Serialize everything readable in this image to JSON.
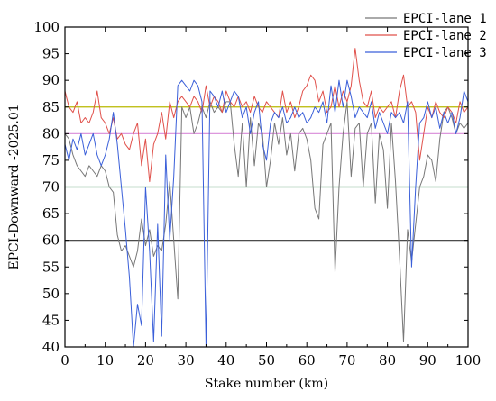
{
  "chart_data": {
    "type": "line",
    "xlabel": "Stake number (km)",
    "ylabel": "EPCI-Downward -2025.01",
    "xlim": [
      0,
      100
    ],
    "ylim": [
      40,
      100
    ],
    "x_ticks": [
      "0",
      "10",
      "20",
      "30",
      "40",
      "50",
      "60",
      "70",
      "80",
      "90",
      "100"
    ],
    "y_ticks": [
      "40",
      "45",
      "50",
      "55",
      "60",
      "65",
      "70",
      "75",
      "80",
      "85",
      "90",
      "95",
      "100"
    ],
    "grid": false,
    "legend_position": "top-right",
    "reference_lines": [
      {
        "y": 85,
        "color": "#b8b800"
      },
      {
        "y": 80,
        "color": "#d88ad8"
      },
      {
        "y": 70,
        "color": "#1f7a3a"
      },
      {
        "y": 60,
        "color": "#333333"
      }
    ],
    "series": [
      {
        "name": "EPCI-lane 1",
        "color": "#777777",
        "points": [
          [
            0,
            80
          ],
          [
            1,
            79
          ],
          [
            2,
            76
          ],
          [
            3,
            74
          ],
          [
            4,
            73
          ],
          [
            5,
            72
          ],
          [
            6,
            74
          ],
          [
            7,
            73
          ],
          [
            8,
            72
          ],
          [
            9,
            74
          ],
          [
            10,
            73
          ],
          [
            11,
            70
          ],
          [
            12,
            69
          ],
          [
            13,
            61
          ],
          [
            14,
            58
          ],
          [
            15,
            59
          ],
          [
            16,
            57
          ],
          [
            17,
            55
          ],
          [
            18,
            58
          ],
          [
            19,
            64
          ],
          [
            20,
            59
          ],
          [
            21,
            62
          ],
          [
            22,
            57
          ],
          [
            23,
            59
          ],
          [
            24,
            58
          ],
          [
            25,
            63
          ],
          [
            26,
            71
          ],
          [
            27,
            60
          ],
          [
            28,
            49
          ],
          [
            29,
            85
          ],
          [
            30,
            83
          ],
          [
            31,
            85
          ],
          [
            32,
            80
          ],
          [
            33,
            82
          ],
          [
            34,
            85
          ],
          [
            35,
            83
          ],
          [
            36,
            86
          ],
          [
            37,
            84
          ],
          [
            38,
            85
          ],
          [
            39,
            84
          ],
          [
            40,
            86
          ],
          [
            41,
            86
          ],
          [
            42,
            78
          ],
          [
            43,
            72
          ],
          [
            44,
            82
          ],
          [
            45,
            70
          ],
          [
            46,
            83
          ],
          [
            47,
            74
          ],
          [
            48,
            82
          ],
          [
            49,
            80
          ],
          [
            50,
            70
          ],
          [
            51,
            75
          ],
          [
            52,
            82
          ],
          [
            53,
            78
          ],
          [
            54,
            83
          ],
          [
            55,
            76
          ],
          [
            56,
            80
          ],
          [
            57,
            73
          ],
          [
            58,
            80
          ],
          [
            59,
            81
          ],
          [
            60,
            79
          ],
          [
            61,
            75
          ],
          [
            62,
            66
          ],
          [
            63,
            64
          ],
          [
            64,
            78
          ],
          [
            65,
            80
          ],
          [
            66,
            82
          ],
          [
            67,
            54
          ],
          [
            68,
            70
          ],
          [
            69,
            80
          ],
          [
            70,
            86
          ],
          [
            71,
            72
          ],
          [
            72,
            81
          ],
          [
            73,
            82
          ],
          [
            74,
            70
          ],
          [
            75,
            80
          ],
          [
            76,
            82
          ],
          [
            77,
            67
          ],
          [
            78,
            80
          ],
          [
            79,
            77
          ],
          [
            80,
            66
          ],
          [
            81,
            82
          ],
          [
            82,
            71
          ],
          [
            83,
            57
          ],
          [
            84,
            41
          ],
          [
            85,
            62
          ],
          [
            86,
            56
          ],
          [
            87,
            63
          ],
          [
            88,
            70
          ],
          [
            89,
            72
          ],
          [
            90,
            76
          ],
          [
            91,
            75
          ],
          [
            92,
            71
          ],
          [
            93,
            79
          ],
          [
            94,
            84
          ],
          [
            95,
            85
          ],
          [
            96,
            83
          ],
          [
            97,
            80
          ],
          [
            98,
            82
          ],
          [
            99,
            81
          ],
          [
            100,
            82
          ]
        ]
      },
      {
        "name": "EPCI-lane 2",
        "color": "#e0504a",
        "points": [
          [
            0,
            88
          ],
          [
            1,
            85
          ],
          [
            2,
            84
          ],
          [
            3,
            86
          ],
          [
            4,
            82
          ],
          [
            5,
            83
          ],
          [
            6,
            82
          ],
          [
            7,
            84
          ],
          [
            8,
            88
          ],
          [
            9,
            83
          ],
          [
            10,
            82
          ],
          [
            11,
            80
          ],
          [
            12,
            83
          ],
          [
            13,
            79
          ],
          [
            14,
            80
          ],
          [
            15,
            78
          ],
          [
            16,
            77
          ],
          [
            17,
            80
          ],
          [
            18,
            82
          ],
          [
            19,
            74
          ],
          [
            20,
            79
          ],
          [
            21,
            71
          ],
          [
            22,
            78
          ],
          [
            23,
            80
          ],
          [
            24,
            84
          ],
          [
            25,
            79
          ],
          [
            26,
            86
          ],
          [
            27,
            83
          ],
          [
            28,
            86
          ],
          [
            29,
            87
          ],
          [
            30,
            86
          ],
          [
            31,
            85
          ],
          [
            32,
            87
          ],
          [
            33,
            86
          ],
          [
            34,
            84
          ],
          [
            35,
            89
          ],
          [
            36,
            85
          ],
          [
            37,
            87
          ],
          [
            38,
            86
          ],
          [
            39,
            84
          ],
          [
            40,
            88
          ],
          [
            41,
            86
          ],
          [
            42,
            85
          ],
          [
            43,
            87
          ],
          [
            44,
            85
          ],
          [
            45,
            86
          ],
          [
            46,
            84
          ],
          [
            47,
            87
          ],
          [
            48,
            85
          ],
          [
            49,
            84
          ],
          [
            50,
            86
          ],
          [
            51,
            85
          ],
          [
            52,
            84
          ],
          [
            53,
            83
          ],
          [
            54,
            88
          ],
          [
            55,
            84
          ],
          [
            56,
            86
          ],
          [
            57,
            83
          ],
          [
            58,
            85
          ],
          [
            59,
            88
          ],
          [
            60,
            89
          ],
          [
            61,
            91
          ],
          [
            62,
            90
          ],
          [
            63,
            86
          ],
          [
            64,
            88
          ],
          [
            65,
            84
          ],
          [
            66,
            85
          ],
          [
            67,
            89
          ],
          [
            68,
            85
          ],
          [
            69,
            88
          ],
          [
            70,
            86
          ],
          [
            71,
            89
          ],
          [
            72,
            96
          ],
          [
            73,
            90
          ],
          [
            74,
            86
          ],
          [
            75,
            85
          ],
          [
            76,
            88
          ],
          [
            77,
            83
          ],
          [
            78,
            85
          ],
          [
            79,
            84
          ],
          [
            80,
            85
          ],
          [
            81,
            86
          ],
          [
            82,
            83
          ],
          [
            83,
            88
          ],
          [
            84,
            91
          ],
          [
            85,
            85
          ],
          [
            86,
            86
          ],
          [
            87,
            84
          ],
          [
            88,
            75
          ],
          [
            89,
            80
          ],
          [
            90,
            85
          ],
          [
            91,
            83
          ],
          [
            92,
            86
          ],
          [
            93,
            84
          ],
          [
            94,
            83
          ],
          [
            95,
            85
          ],
          [
            96,
            84
          ],
          [
            97,
            82
          ],
          [
            98,
            86
          ],
          [
            99,
            84
          ],
          [
            100,
            85
          ]
        ]
      },
      {
        "name": "EPCI-lane 3",
        "color": "#3a5fd9",
        "points": [
          [
            0,
            78
          ],
          [
            1,
            75
          ],
          [
            2,
            79
          ],
          [
            3,
            77
          ],
          [
            4,
            80
          ],
          [
            5,
            76
          ],
          [
            6,
            78
          ],
          [
            7,
            80
          ],
          [
            8,
            76
          ],
          [
            9,
            74
          ],
          [
            10,
            76
          ],
          [
            11,
            79
          ],
          [
            12,
            84
          ],
          [
            13,
            78
          ],
          [
            14,
            70
          ],
          [
            15,
            62
          ],
          [
            16,
            53
          ],
          [
            17,
            40
          ],
          [
            18,
            48
          ],
          [
            19,
            44
          ],
          [
            20,
            70
          ],
          [
            21,
            58
          ],
          [
            22,
            41
          ],
          [
            23,
            63
          ],
          [
            24,
            42
          ],
          [
            25,
            76
          ],
          [
            26,
            60
          ],
          [
            27,
            72
          ],
          [
            28,
            89
          ],
          [
            29,
            90
          ],
          [
            30,
            89
          ],
          [
            31,
            88
          ],
          [
            32,
            90
          ],
          [
            33,
            89
          ],
          [
            34,
            86
          ],
          [
            35,
            40
          ],
          [
            36,
            88
          ],
          [
            37,
            87
          ],
          [
            38,
            85
          ],
          [
            39,
            88
          ],
          [
            40,
            84
          ],
          [
            41,
            86
          ],
          [
            42,
            88
          ],
          [
            43,
            87
          ],
          [
            44,
            83
          ],
          [
            45,
            85
          ],
          [
            46,
            80
          ],
          [
            47,
            84
          ],
          [
            48,
            86
          ],
          [
            49,
            78
          ],
          [
            50,
            75
          ],
          [
            51,
            82
          ],
          [
            52,
            84
          ],
          [
            53,
            83
          ],
          [
            54,
            85
          ],
          [
            55,
            82
          ],
          [
            56,
            83
          ],
          [
            57,
            85
          ],
          [
            58,
            83
          ],
          [
            59,
            84
          ],
          [
            60,
            82
          ],
          [
            61,
            83
          ],
          [
            62,
            85
          ],
          [
            63,
            84
          ],
          [
            64,
            86
          ],
          [
            65,
            82
          ],
          [
            66,
            89
          ],
          [
            67,
            84
          ],
          [
            68,
            90
          ],
          [
            69,
            85
          ],
          [
            70,
            90
          ],
          [
            71,
            87
          ],
          [
            72,
            83
          ],
          [
            73,
            85
          ],
          [
            74,
            84
          ],
          [
            75,
            83
          ],
          [
            76,
            86
          ],
          [
            77,
            81
          ],
          [
            78,
            84
          ],
          [
            79,
            82
          ],
          [
            80,
            80
          ],
          [
            81,
            84
          ],
          [
            82,
            83
          ],
          [
            83,
            84
          ],
          [
            84,
            82
          ],
          [
            85,
            86
          ],
          [
            86,
            55
          ],
          [
            87,
            70
          ],
          [
            88,
            82
          ],
          [
            89,
            83
          ],
          [
            90,
            86
          ],
          [
            91,
            83
          ],
          [
            92,
            85
          ],
          [
            93,
            81
          ],
          [
            94,
            84
          ],
          [
            95,
            82
          ],
          [
            96,
            84
          ],
          [
            97,
            80
          ],
          [
            98,
            83
          ],
          [
            99,
            88
          ],
          [
            100,
            86
          ]
        ]
      }
    ]
  }
}
